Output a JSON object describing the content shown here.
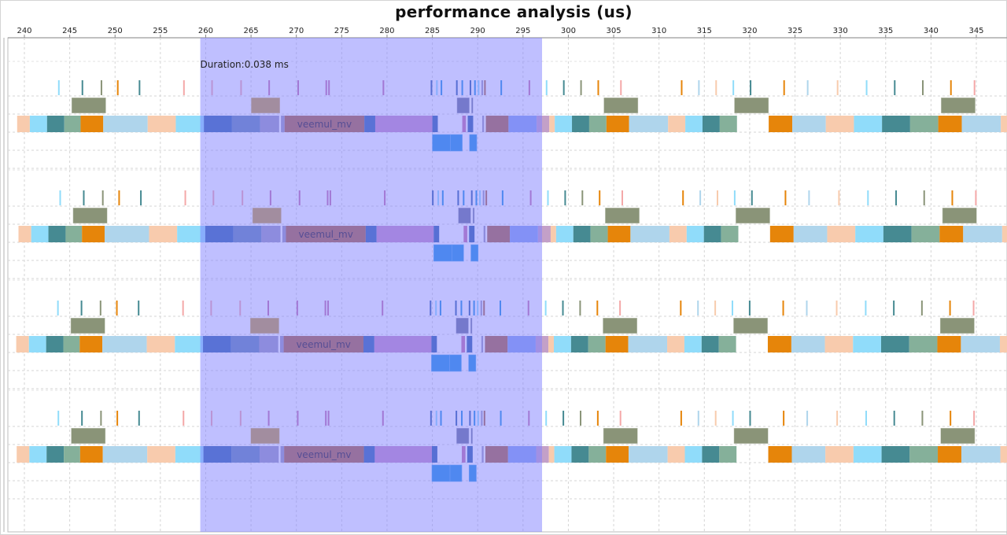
{
  "chart_data": {
    "type": "timeline",
    "title": "performance analysis (us)",
    "xlabel": "",
    "ylabel": "",
    "xlim": [
      239.2,
      349.5
    ],
    "x_ticks": [
      240,
      245,
      250,
      255,
      260,
      265,
      270,
      275,
      280,
      285,
      290,
      295,
      300,
      305,
      310,
      315,
      320,
      325,
      330,
      335,
      340,
      345
    ],
    "grid": true,
    "selection": {
      "start": 259.4,
      "end": 297.1,
      "label": "Duration:0.038 ms",
      "color": "#8080ff"
    },
    "colors": {
      "peach": "#f8cbad",
      "sky": "#90dcfa",
      "teal": "#468a92",
      "sage": "#85b09a",
      "orange": "#e6850a",
      "lightblue": "#afd5ec",
      "olive": "#8a9478",
      "gold": "#c49a3e",
      "blue": "#3365ac",
      "steel": "#6385b2",
      "lavgray": "#9b98bd",
      "rust": "#ac6340",
      "orchid": "#c68cc4",
      "mauve": "#c06fb0",
      "royal": "#2f5ea8",
      "azure": "#1e90e0",
      "periwinkle": "#86a3ec",
      "rose": "#c3a0c8",
      "slate": "#6b7399",
      "pink_tick": "#f4a8a8",
      "mag_tick": "#c470a8"
    },
    "groups": [
      {
        "name": "group-1",
        "ticks": [
          {
            "t": 243.8,
            "c": "sky"
          },
          {
            "t": 246.4,
            "c": "teal"
          },
          {
            "t": 248.5,
            "c": "olive"
          },
          {
            "t": 250.3,
            "c": "orange"
          },
          {
            "t": 252.7,
            "c": "teal"
          },
          {
            "t": 257.6,
            "c": "pink_tick"
          },
          {
            "t": 260.7,
            "c": "pink_tick"
          },
          {
            "t": 263.9,
            "c": "pink_tick"
          },
          {
            "t": 267.0,
            "c": "mag_tick"
          },
          {
            "t": 270.2,
            "c": "mag_tick"
          },
          {
            "t": 273.3,
            "c": "mag_tick"
          },
          {
            "t": 273.6,
            "c": "mag_tick"
          },
          {
            "t": 279.6,
            "c": "mag_tick"
          },
          {
            "t": 284.9,
            "c": "royal"
          },
          {
            "t": 285.5,
            "c": "sky"
          },
          {
            "t": 286.0,
            "c": "azure"
          },
          {
            "t": 287.7,
            "c": "royal"
          },
          {
            "t": 288.3,
            "c": "azure"
          },
          {
            "t": 289.2,
            "c": "royal"
          },
          {
            "t": 289.7,
            "c": "azure"
          },
          {
            "t": 290.1,
            "c": "sky"
          },
          {
            "t": 290.5,
            "c": "lavgray"
          },
          {
            "t": 290.8,
            "c": "rust"
          },
          {
            "t": 292.6,
            "c": "azure"
          },
          {
            "t": 295.7,
            "c": "mag_tick"
          },
          {
            "t": 297.6,
            "c": "sky"
          },
          {
            "t": 299.5,
            "c": "teal"
          },
          {
            "t": 301.4,
            "c": "olive"
          },
          {
            "t": 303.3,
            "c": "orange"
          },
          {
            "t": 305.8,
            "c": "pink_tick"
          },
          {
            "t": 312.5,
            "c": "orange"
          },
          {
            "t": 314.4,
            "c": "lightblue"
          },
          {
            "t": 316.3,
            "c": "peach"
          },
          {
            "t": 318.2,
            "c": "sky"
          },
          {
            "t": 320.1,
            "c": "teal"
          },
          {
            "t": 323.8,
            "c": "orange"
          },
          {
            "t": 326.4,
            "c": "lightblue"
          },
          {
            "t": 329.7,
            "c": "peach"
          },
          {
            "t": 332.9,
            "c": "sky"
          },
          {
            "t": 336.0,
            "c": "teal"
          },
          {
            "t": 339.1,
            "c": "olive"
          },
          {
            "t": 342.2,
            "c": "orange"
          },
          {
            "t": 344.8,
            "c": "pink_tick"
          },
          {
            "t": 349.2,
            "c": "orange"
          }
        ],
        "row2": [
          {
            "s": 245.2,
            "e": 249.0,
            "c": "olive"
          },
          {
            "s": 265.0,
            "e": 268.2,
            "c": "gold"
          },
          {
            "s": 287.7,
            "e": 289.1,
            "c": "slate"
          },
          {
            "s": 289.3,
            "e": 289.5,
            "c": "slate"
          },
          {
            "s": 303.9,
            "e": 307.7,
            "c": "olive"
          },
          {
            "s": 318.3,
            "e": 322.1,
            "c": "olive"
          },
          {
            "s": 341.1,
            "e": 344.9,
            "c": "olive"
          }
        ],
        "row3": [
          {
            "s": 239.2,
            "e": 240.6,
            "c": "peach"
          },
          {
            "s": 240.6,
            "e": 242.5,
            "c": "sky"
          },
          {
            "s": 242.5,
            "e": 244.4,
            "c": "teal"
          },
          {
            "s": 244.4,
            "e": 246.2,
            "c": "sage"
          },
          {
            "s": 246.2,
            "e": 248.7,
            "c": "orange"
          },
          {
            "s": 248.7,
            "e": 253.6,
            "c": "lightblue"
          },
          {
            "s": 253.6,
            "e": 256.7,
            "c": "peach"
          },
          {
            "s": 256.7,
            "e": 259.8,
            "c": "sky"
          },
          {
            "s": 259.8,
            "e": 262.9,
            "c": "blue"
          },
          {
            "s": 262.9,
            "e": 266.0,
            "c": "steel"
          },
          {
            "s": 266.0,
            "e": 268.1,
            "c": "lavgray"
          },
          {
            "s": 268.3,
            "e": 268.7,
            "c": "lavgray"
          },
          {
            "s": 268.7,
            "e": 277.5,
            "c": "rust",
            "label": "veemul_mv"
          },
          {
            "s": 277.5,
            "e": 278.7,
            "c": "blue"
          },
          {
            "s": 278.7,
            "e": 285.0,
            "c": "orchid"
          },
          {
            "s": 285.0,
            "e": 285.6,
            "c": "royal"
          },
          {
            "s": 288.3,
            "e": 288.7,
            "c": "mag_tick"
          },
          {
            "s": 288.9,
            "e": 289.5,
            "c": "royal"
          },
          {
            "s": 290.5,
            "e": 290.7,
            "c": "lavgray"
          },
          {
            "s": 290.9,
            "e": 293.4,
            "c": "rust"
          },
          {
            "s": 293.4,
            "e": 296.5,
            "c": "periwinkle"
          },
          {
            "s": 296.5,
            "e": 297.9,
            "c": "rose"
          },
          {
            "s": 297.9,
            "e": 298.5,
            "c": "peach"
          },
          {
            "s": 298.5,
            "e": 300.4,
            "c": "sky"
          },
          {
            "s": 300.4,
            "e": 302.3,
            "c": "teal"
          },
          {
            "s": 302.3,
            "e": 304.2,
            "c": "sage"
          },
          {
            "s": 304.2,
            "e": 306.7,
            "c": "orange"
          },
          {
            "s": 306.7,
            "e": 311.0,
            "c": "lightblue"
          },
          {
            "s": 311.0,
            "e": 312.9,
            "c": "peach"
          },
          {
            "s": 312.9,
            "e": 314.8,
            "c": "sky"
          },
          {
            "s": 314.8,
            "e": 316.7,
            "c": "teal"
          },
          {
            "s": 316.7,
            "e": 318.6,
            "c": "sage"
          },
          {
            "s": 322.1,
            "e": 324.7,
            "c": "orange"
          },
          {
            "s": 324.7,
            "e": 328.4,
            "c": "lightblue"
          },
          {
            "s": 328.4,
            "e": 331.5,
            "c": "peach"
          },
          {
            "s": 331.5,
            "e": 334.6,
            "c": "sky"
          },
          {
            "s": 334.6,
            "e": 337.7,
            "c": "teal"
          },
          {
            "s": 337.7,
            "e": 340.8,
            "c": "sage"
          },
          {
            "s": 340.8,
            "e": 343.4,
            "c": "orange"
          },
          {
            "s": 343.4,
            "e": 347.7,
            "c": "lightblue"
          },
          {
            "s": 347.7,
            "e": 349.5,
            "c": "peach"
          }
        ],
        "row4": [
          {
            "s": 285.0,
            "e": 287.0,
            "c": "azure"
          },
          {
            "s": 287.0,
            "e": 288.3,
            "c": "azure"
          },
          {
            "s": 289.1,
            "e": 289.9,
            "c": "azure"
          }
        ]
      },
      {
        "name": "group-2",
        "same_as": "group-1",
        "shift": 0.15
      },
      {
        "name": "group-3",
        "same_as": "group-1",
        "shift": -0.1
      },
      {
        "name": "group-4",
        "same_as": "group-1",
        "shift": -0.05
      }
    ]
  }
}
